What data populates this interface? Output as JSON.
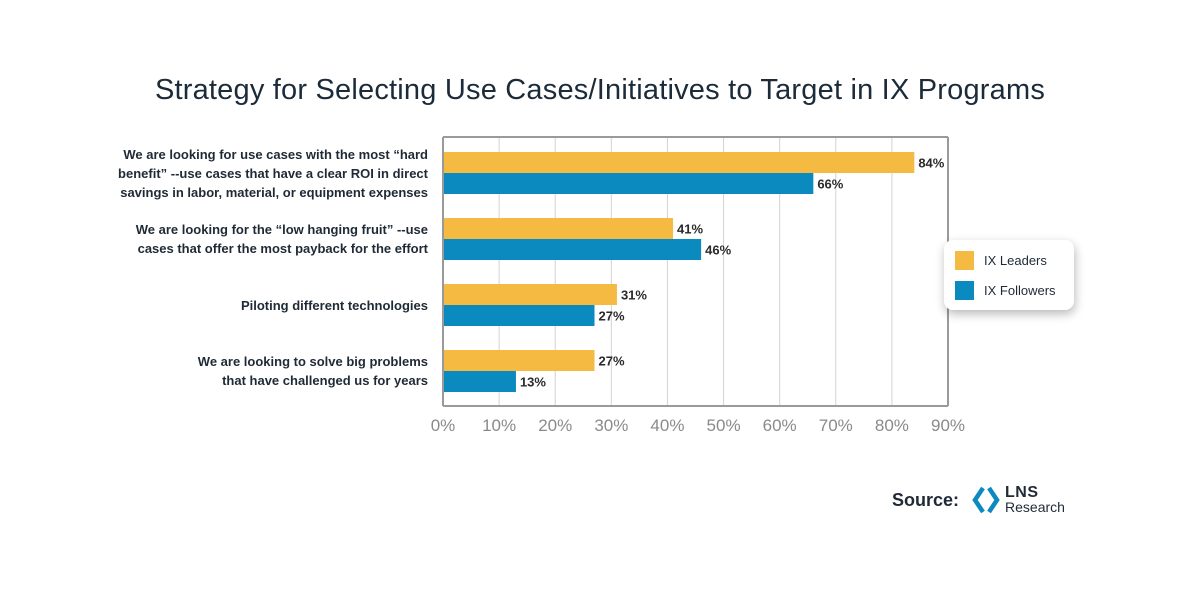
{
  "chart_data": {
    "type": "bar",
    "orientation": "horizontal",
    "title": "Strategy for Selecting Use Cases/Initiatives to Target in IX Programs",
    "categories": [
      "We are looking for use cases with the most “hard benefit” --use cases that have a clear ROI in direct savings in labor, material, or equipment expenses",
      "We are looking for the “low hanging fruit” --use cases that offer the most payback for the effort",
      "Piloting different technologies",
      "We are looking to solve big problems that have challenged us for years"
    ],
    "category_lines": [
      [
        "We are looking for use cases with the most “hard",
        "benefit” --use cases that have a clear ROI in direct",
        "savings in labor, material, or equipment expenses"
      ],
      [
        "We are looking for the “low hanging fruit” --use",
        "cases that offer the most payback for the effort"
      ],
      [
        "Piloting different technologies"
      ],
      [
        "We are looking to solve big problems",
        "that have challenged us for years"
      ]
    ],
    "series": [
      {
        "name": "IX Leaders",
        "values": [
          84,
          41,
          31,
          27
        ],
        "color": "#F4BA41"
      },
      {
        "name": "IX Followers",
        "values": [
          66,
          46,
          27,
          13
        ],
        "color": "#0A8ABF"
      }
    ],
    "value_suffix": "%",
    "xlim": [
      0,
      90
    ],
    "xticks": [
      0,
      10,
      20,
      30,
      40,
      50,
      60,
      70,
      80,
      90
    ],
    "xtick_labels": [
      "0%",
      "10%",
      "20%",
      "30%",
      "40%",
      "50%",
      "60%",
      "70%",
      "80%",
      "90%"
    ],
    "grid": true,
    "legend_position": "right"
  },
  "legend": {
    "items": [
      {
        "label": "IX Leaders",
        "color": "#F4BA41"
      },
      {
        "label": "IX Followers",
        "color": "#0A8ABF"
      }
    ]
  },
  "source": {
    "label": "Source:",
    "logo_name": "LNS",
    "logo_sub": "Research"
  },
  "colors": {
    "leaders": "#F4BA41",
    "followers": "#0A8ABF",
    "grid": "#d3d3d3",
    "axis": "#9a9a9a",
    "logo": "#0A8ABF"
  }
}
